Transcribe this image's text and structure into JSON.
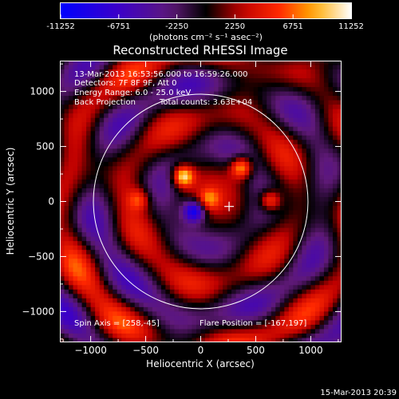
{
  "chart_data": {
    "type": "heatmap",
    "title": "Reconstructed RHESSI Image",
    "xlabel": "Heliocentric X (arcsec)",
    "ylabel": "Heliocentric Y (arcsec)",
    "xlim": [
      -1280,
      1280
    ],
    "ylim": [
      -1280,
      1280
    ],
    "xticks": [
      -1000,
      -500,
      0,
      500,
      1000
    ],
    "yticks": [
      -1000,
      -500,
      0,
      500,
      1000
    ],
    "colorbar": {
      "range": [
        -11252,
        11252
      ],
      "ticks": [
        -11252,
        -6751,
        -2250,
        2250,
        6751,
        11252
      ],
      "unit_label": "(photons cm⁻² s⁻¹ asec⁻²)"
    },
    "annotations": {
      "time": "13-Mar-2013 16:53:56.000 to 16:59:26.000",
      "detectors": "Detectors: 7F 8F 9F, Att 0",
      "energy": "Energy Range: 6.0 - 25.0 keV",
      "method": "Back Projection",
      "counts": "Total counts: 3.63E+04",
      "spin_axis": "Spin Axis = [258,-45]",
      "flare_position": "Flare Position = [-167,197]"
    },
    "solar_disk_radius_arcsec": 975,
    "marker_position": [
      258,
      -45
    ],
    "bright_sources": [
      {
        "x": -160,
        "y": 230,
        "value": 11000
      },
      {
        "x": 370,
        "y": 310,
        "value": 9500
      },
      {
        "x": 630,
        "y": 10,
        "value": 8000
      },
      {
        "x": 80,
        "y": 20,
        "value": 7000
      },
      {
        "x": -560,
        "y": 20,
        "value": 5000
      }
    ],
    "dark_sources": [
      {
        "x": -60,
        "y": -90,
        "value": -11000
      }
    ],
    "grid": false
  },
  "footer": {
    "timestamp": "15-Mar-2013 20:39"
  }
}
